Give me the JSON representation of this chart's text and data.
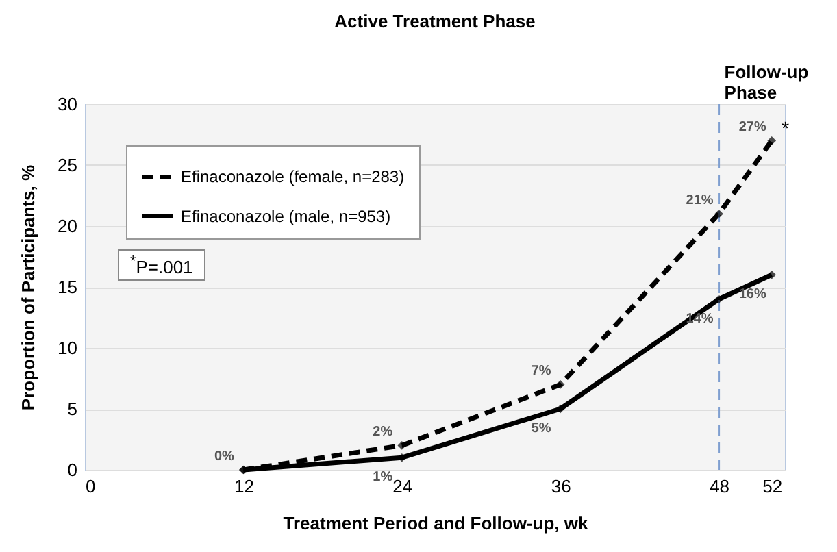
{
  "chart_data": {
    "type": "line",
    "title": "Active Treatment Phase",
    "xlabel": "Treatment Period and Follow-up, wk",
    "ylabel": "Proportion of Participants, %",
    "x": [
      12,
      24,
      36,
      48,
      52
    ],
    "series": [
      {
        "name": "Efinaconazole (female, n=283)",
        "color": "#000000",
        "line_style": "dashed",
        "values": [
          0,
          2,
          7,
          21,
          27
        ],
        "value_labels": [
          "0%",
          "2%",
          "7%",
          "21%",
          "27%"
        ]
      },
      {
        "name": "Efinaconazole (male, n=953)",
        "color": "#000000",
        "line_style": "solid",
        "values": [
          0,
          1,
          5,
          14,
          16
        ],
        "value_labels": [
          null,
          "1%",
          "5%",
          "14%",
          "16%"
        ]
      }
    ],
    "xlim": [
      0,
      53
    ],
    "xticks": [
      0,
      12,
      24,
      36,
      48,
      52
    ],
    "ylim": [
      0,
      30
    ],
    "yticks": [
      0,
      5,
      10,
      15,
      20,
      25,
      30
    ],
    "grid": "y",
    "legend": "top left",
    "marker": "diamond",
    "ref_lines": [
      {
        "axis": "x",
        "value": 48,
        "label": "Follow-up Phase",
        "color": "#7f9fd0",
        "line_style": "dashed"
      }
    ],
    "annotations": [
      "$^{*}$P=.001",
      {
        "text": "*",
        "x": 52,
        "y": 27
      }
    ]
  }
}
